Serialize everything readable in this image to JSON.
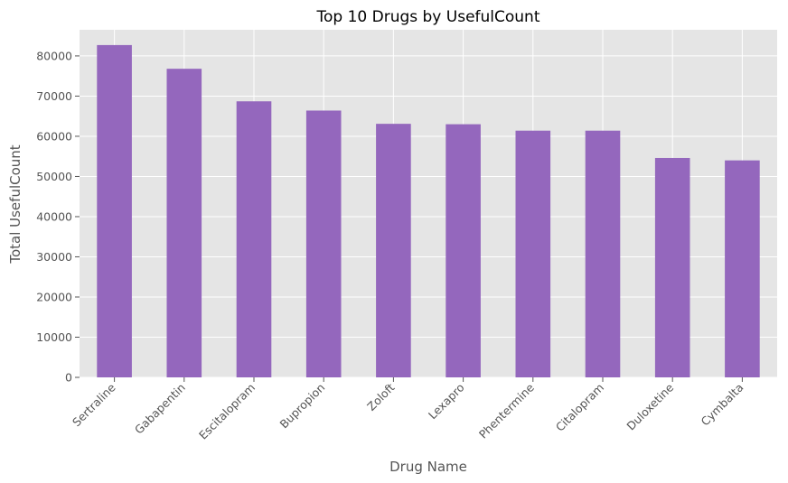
{
  "chart_data": {
    "type": "bar",
    "title": "Top 10 Drugs by UsefulCount",
    "xlabel": "Drug Name",
    "ylabel": "Total UsefulCount",
    "categories": [
      "Sertraline",
      "Gabapentin",
      "Escitalopram",
      "Bupropion",
      "Zoloft",
      "Lexapro",
      "Phentermine",
      "Citalopram",
      "Duloxetine",
      "Cymbalta"
    ],
    "values": [
      82700,
      76800,
      68700,
      66400,
      63100,
      63000,
      61400,
      61400,
      54600,
      54000
    ],
    "ylim": [
      0,
      86500
    ],
    "yticks": [
      0,
      10000,
      20000,
      30000,
      40000,
      50000,
      60000,
      70000,
      80000
    ],
    "grid": true,
    "colors": {
      "bar": "#9467bd",
      "plot_background": "#e5e5e5",
      "grid": "#ffffff"
    }
  }
}
